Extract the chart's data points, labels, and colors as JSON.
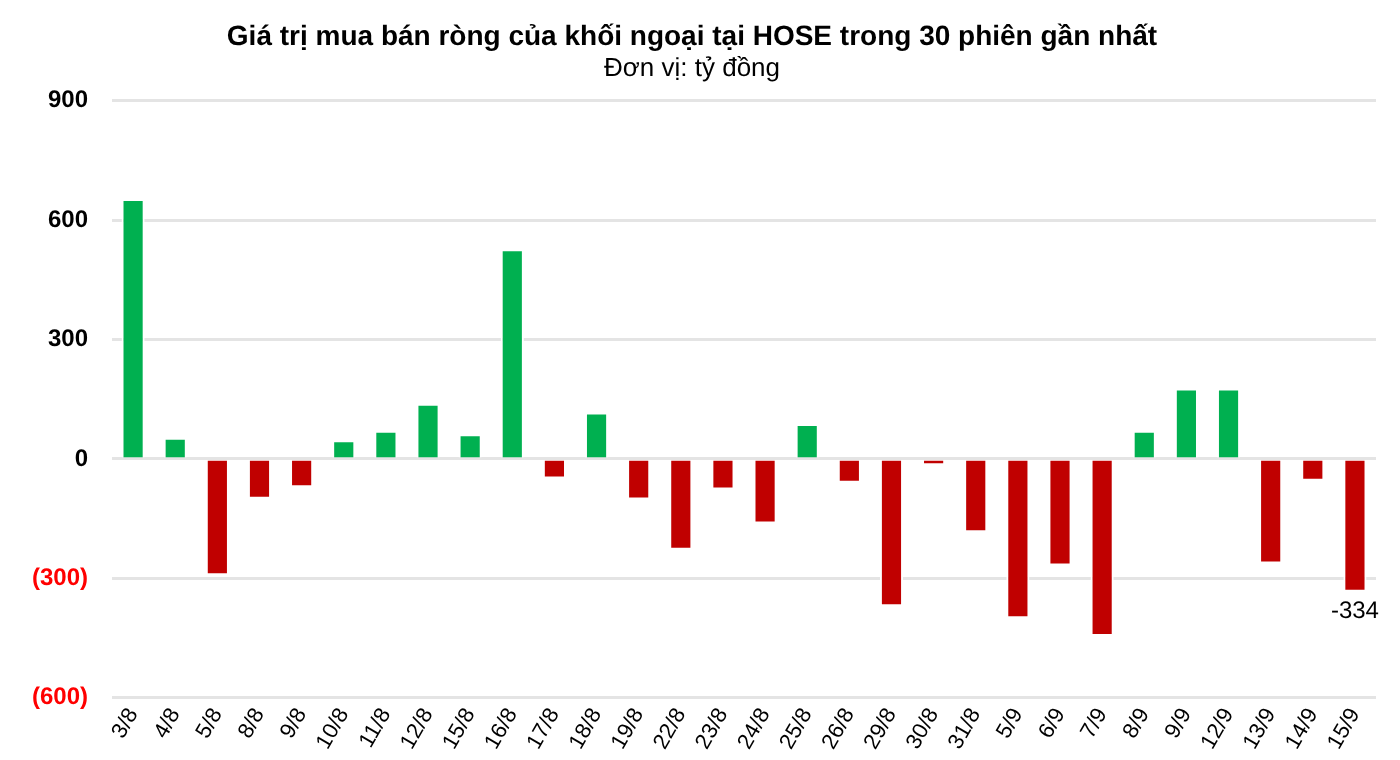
{
  "chart_data": {
    "type": "bar",
    "title": "Giá trị mua bán ròng của khối ngoại tại HOSE trong 30 phiên gần nhất",
    "subtitle": "Đơn vị: tỷ đồng",
    "categories": [
      "3/8",
      "4/8",
      "5/8",
      "8/8",
      "9/8",
      "10/8",
      "11/8",
      "12/8",
      "15/8",
      "16/8",
      "17/8",
      "18/8",
      "19/8",
      "22/8",
      "23/8",
      "24/8",
      "25/8",
      "26/8",
      "29/8",
      "30/8",
      "31/8",
      "5/9",
      "6/9",
      "7/9",
      "8/9",
      "9/9",
      "12/9",
      "13/9",
      "14/9",
      "15/9"
    ],
    "values": [
      653,
      53,
      -292,
      -100,
      -71,
      47,
      71,
      139,
      62,
      527,
      -49,
      117,
      -102,
      -228,
      -77,
      -162,
      88,
      -60,
      -370,
      -16,
      -184,
      -400,
      -268,
      -445,
      71,
      177,
      177,
      -263,
      -55,
      -334
    ],
    "colors": [
      "#00b050",
      "#00b050",
      "#c00000",
      "#c00000",
      "#c00000",
      "#00b050",
      "#00b050",
      "#00b050",
      "#00b050",
      "#00b050",
      "#c00000",
      "#00b050",
      "#c00000",
      "#c00000",
      "#c00000",
      "#c00000",
      "#00b050",
      "#c00000",
      "#c00000",
      "#c00000",
      "#c00000",
      "#c00000",
      "#c00000",
      "#c00000",
      "#00b050",
      "#00b050",
      "#00b050",
      "#c00000",
      "#c00000",
      "#c00000"
    ],
    "value_labels": [
      null,
      null,
      null,
      null,
      null,
      null,
      null,
      null,
      null,
      null,
      null,
      null,
      null,
      null,
      null,
      null,
      null,
      null,
      null,
      null,
      null,
      null,
      null,
      null,
      null,
      null,
      null,
      null,
      null,
      "-334"
    ],
    "ylim": [
      -600,
      900
    ],
    "yticks": [
      900,
      600,
      300,
      0,
      {
        "value": -300,
        "label": "(300)"
      },
      {
        "value": -600,
        "label": "(600)"
      }
    ],
    "grid": "y",
    "legend": false
  }
}
